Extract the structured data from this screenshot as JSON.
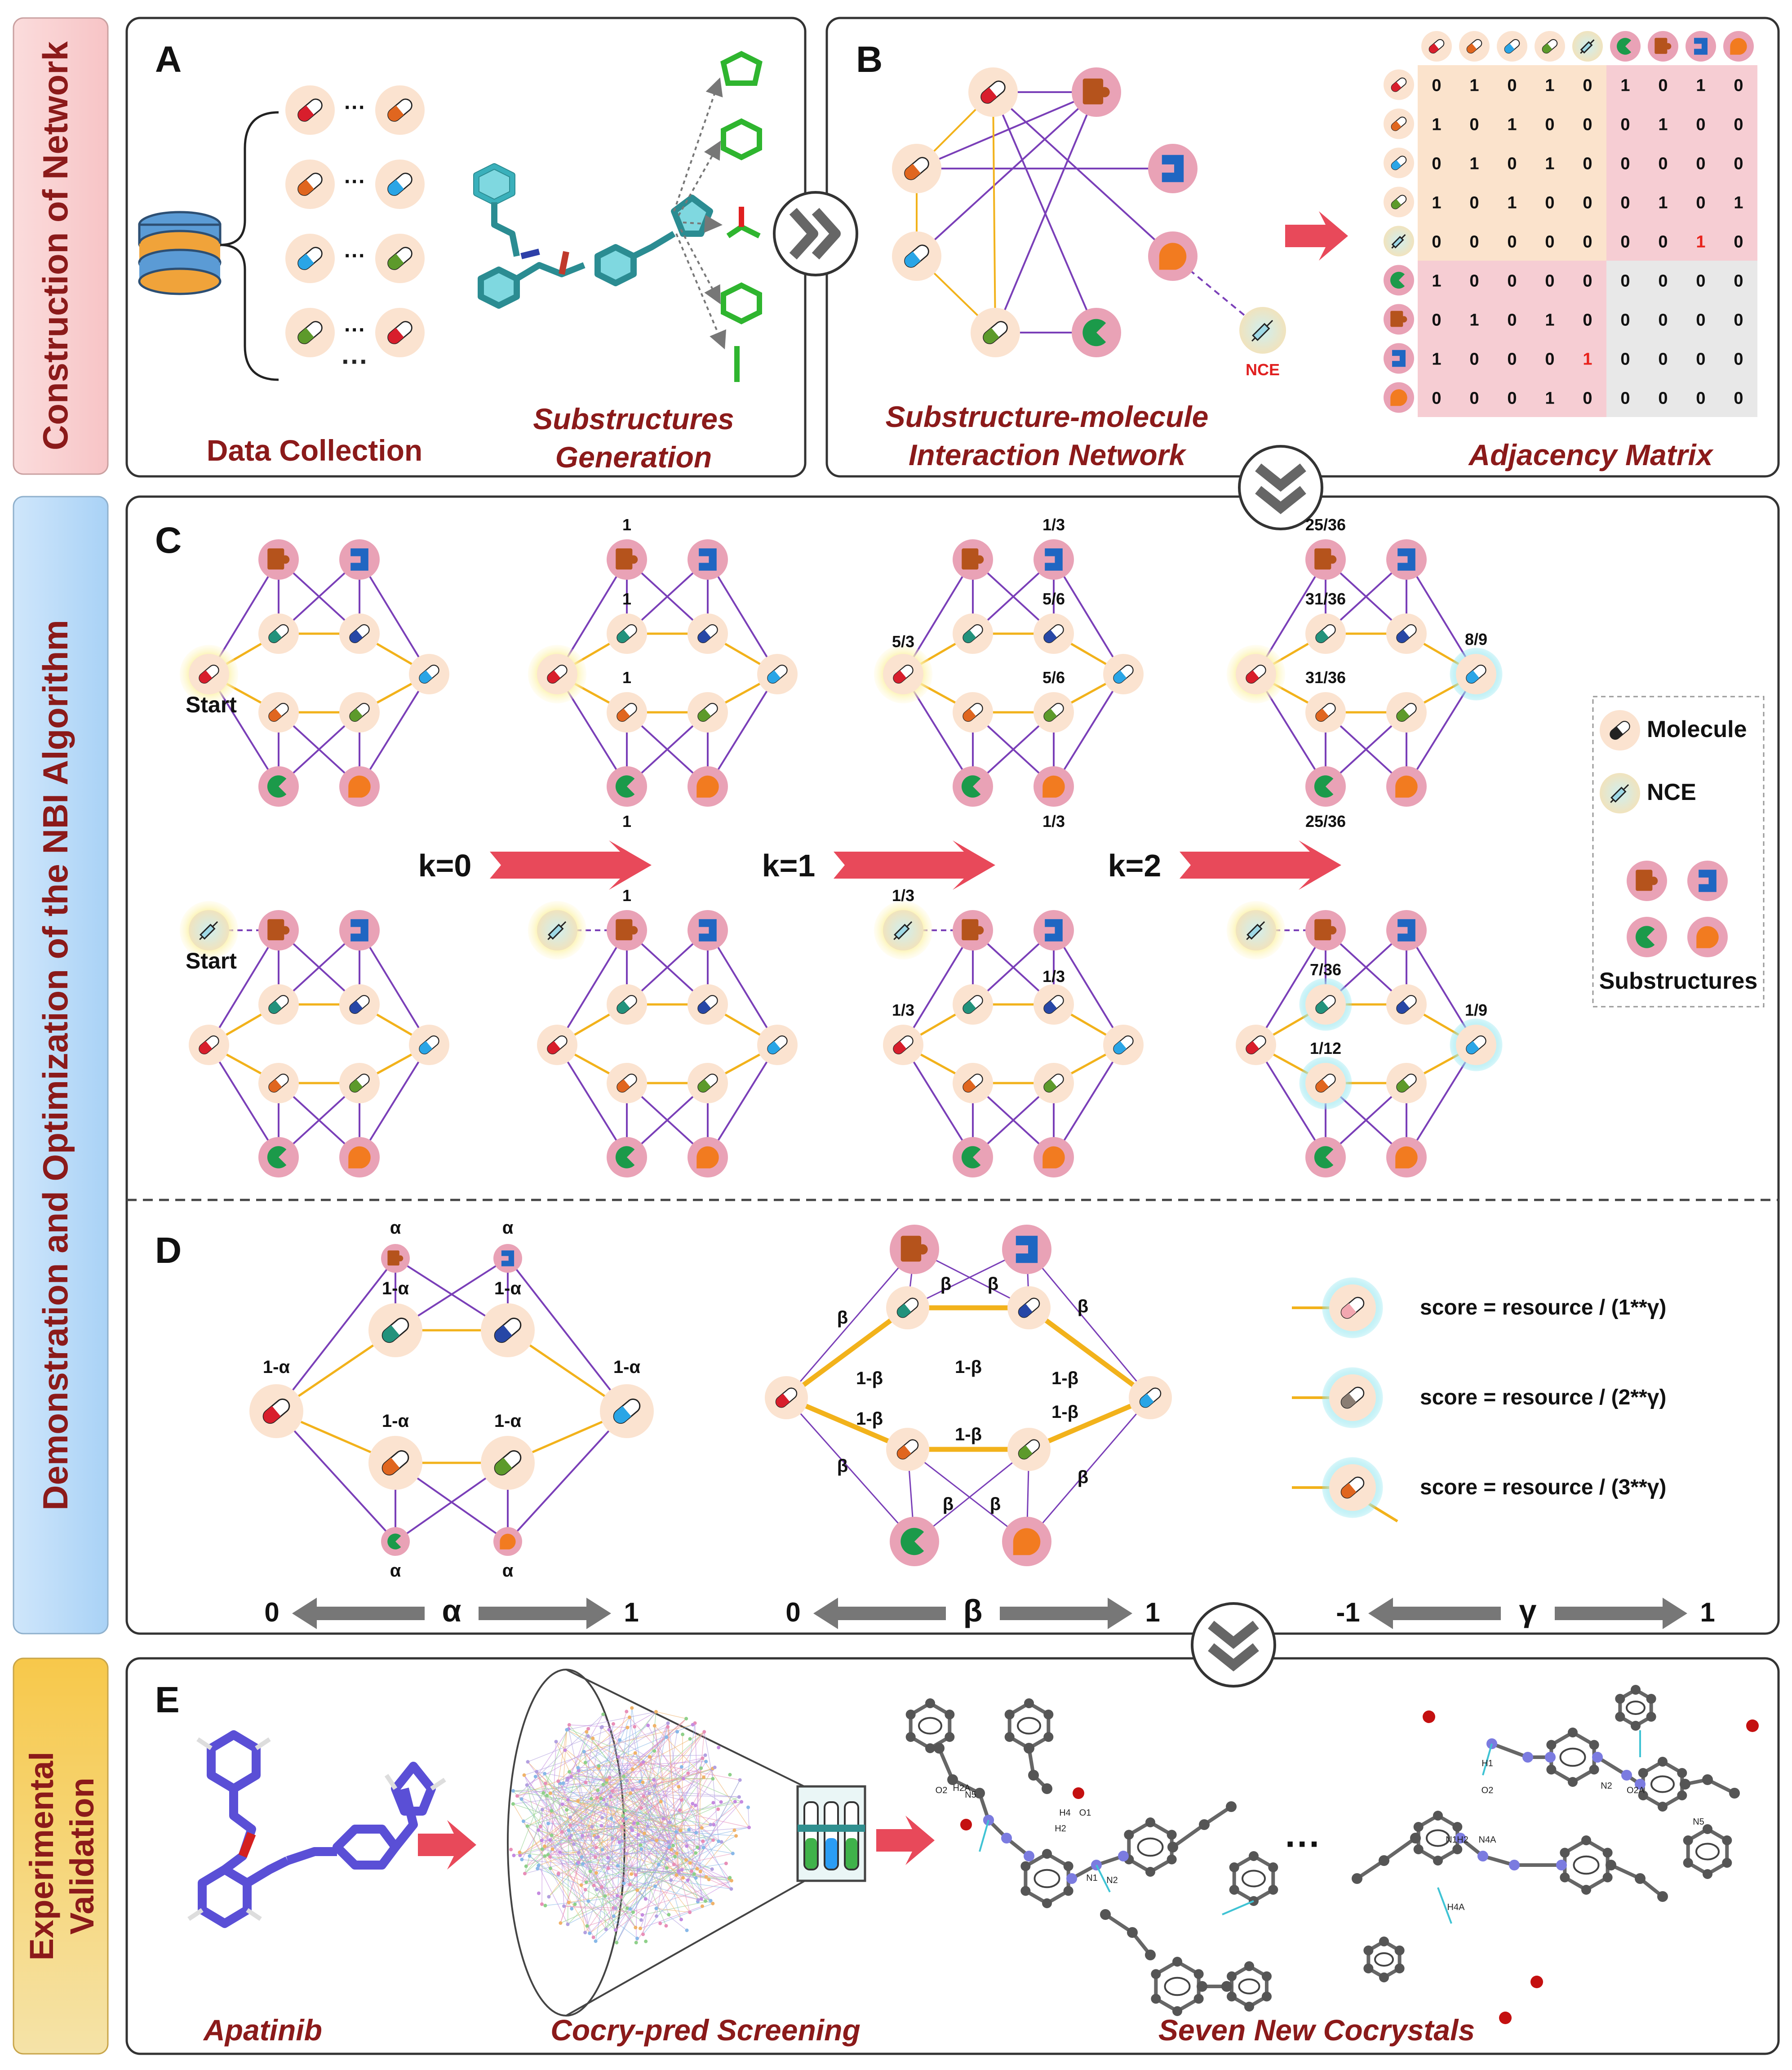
{
  "side_labels": {
    "network": "Construction of  Network",
    "nbi": "Demonstration and Optimization of the NBI Algorithm",
    "exp_line1": "Experimental",
    "exp_line2": "Validation"
  },
  "panel_letters": {
    "a": "A",
    "b": "B",
    "c": "C",
    "d": "D",
    "e": "E"
  },
  "panel_a": {
    "dots": "···",
    "caption_data": "Data Collection",
    "caption_sub_1": "Substructures",
    "caption_sub_2": "Generation"
  },
  "panel_b": {
    "nce_label": "NCE",
    "caption_net_1": "Substructure-molecule",
    "caption_net_2": "Interaction Network",
    "caption_matrix": "Adjacency Matrix",
    "matrix": [
      [
        "0",
        "1",
        "0",
        "1",
        "0",
        "1",
        "0",
        "1",
        "0"
      ],
      [
        "1",
        "0",
        "1",
        "0",
        "0",
        "0",
        "1",
        "0",
        "0"
      ],
      [
        "0",
        "1",
        "0",
        "1",
        "0",
        "0",
        "0",
        "0",
        "0"
      ],
      [
        "1",
        "0",
        "1",
        "0",
        "0",
        "0",
        "1",
        "0",
        "1"
      ],
      [
        "0",
        "0",
        "0",
        "0",
        "0",
        "0",
        "0",
        "1",
        "0"
      ],
      [
        "1",
        "0",
        "0",
        "0",
        "0",
        "0",
        "0",
        "0",
        "0"
      ],
      [
        "0",
        "1",
        "0",
        "1",
        "0",
        "0",
        "0",
        "0",
        "0"
      ],
      [
        "1",
        "0",
        "0",
        "0",
        "1",
        "0",
        "0",
        "0",
        "0"
      ],
      [
        "0",
        "0",
        "0",
        "1",
        "0",
        "0",
        "0",
        "0",
        "0"
      ]
    ],
    "highlight_color": "#e8221b"
  },
  "panel_c": {
    "start": "Start",
    "steps": [
      "k=0",
      "k=1",
      "k=2"
    ],
    "top_labels": {
      "g2_top": "1",
      "g2_m1": "1",
      "g2_m2": "1",
      "g2_bot": "1",
      "g3_top": "1/3",
      "g3_start": "5/3",
      "g3_m1": "5/6",
      "g3_m2": "5/6",
      "g3_bot": "1/3",
      "g4_top": "25/36",
      "g4_m1": "31/36",
      "g4_m2": "31/36",
      "g4_bot": "25/36",
      "g4_target": "8/9"
    },
    "bottom_labels": {
      "g2_top": "1",
      "g3_nce": "1/3",
      "g3_m1": "1/3",
      "g3_left": "1/3",
      "g4_m1": "7/36",
      "g4_m2": "1/12",
      "g4_target": "1/9"
    },
    "legend": {
      "molecule": "Molecule",
      "nce": "NCE",
      "substructures": "Substructures"
    }
  },
  "panel_d": {
    "alpha": "α",
    "one_minus_alpha": "1-α",
    "beta": "β",
    "one_minus_beta": "1-β",
    "gamma": "γ",
    "scores": [
      "score = resource / (1**γ)",
      "score = resource / (2**γ)",
      "score = resource / (3**γ)"
    ],
    "alpha_range": [
      "0",
      "1"
    ],
    "beta_range": [
      "0",
      "1"
    ],
    "gamma_range": [
      "-1",
      "1"
    ]
  },
  "panel_e": {
    "caption_drug": "Apatinib",
    "caption_screen": "Cocry-pred Screening",
    "caption_crystals": "Seven  New Cocrystals",
    "dots": "···",
    "atom_labels": [
      "O2",
      "H2A",
      "N5",
      "H4",
      "O1",
      "H2",
      "N1",
      "N2",
      "H1",
      "O2",
      "N1",
      "H2",
      "N4A",
      "H4A",
      "N2",
      "O2A",
      "N5"
    ]
  },
  "colors": {
    "title_red": "#8b1a1a",
    "purple_edge": "#7a3fb8",
    "yellow_edge": "#f2b21b",
    "arrow_red": "#e8495a",
    "arrow_gray": "#777777"
  }
}
